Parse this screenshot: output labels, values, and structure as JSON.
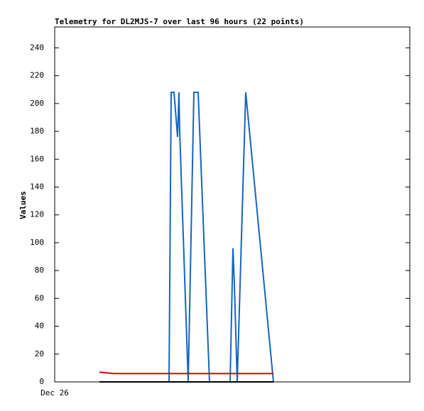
{
  "chart_data": {
    "type": "line",
    "title": "Telemetry for DL2MJS-7 over last 96 hours (22 points)",
    "ylabel": "Values",
    "xlim": [
      0,
      100
    ],
    "xticks": [
      {
        "value": 0,
        "label": "Dec 26"
      }
    ],
    "ylim": [
      0,
      255
    ],
    "yticks": [
      0,
      20,
      40,
      60,
      80,
      100,
      120,
      140,
      160,
      180,
      200,
      220,
      240
    ],
    "grid": false,
    "series": [
      {
        "color": "#1565c0",
        "x": [
          32.2,
          32.8,
          33.6,
          34.6,
          35,
          35.2,
          37.6,
          39.2,
          40.4,
          43.6,
          49.4,
          50.2,
          50.6,
          51.4,
          53.8,
          61.6
        ],
        "values": [
          0,
          208,
          208,
          176,
          208,
          180,
          0,
          208,
          208,
          0,
          0,
          96,
          70,
          0,
          208,
          0
        ]
      },
      {
        "color": "#e00000",
        "x": [
          12.6,
          14.6,
          16.6,
          61.6
        ],
        "values": [
          7,
          6.5,
          6,
          6
        ]
      },
      {
        "color": "#000000",
        "x": [
          12.6,
          61.6
        ],
        "values": [
          0,
          0
        ]
      }
    ]
  }
}
